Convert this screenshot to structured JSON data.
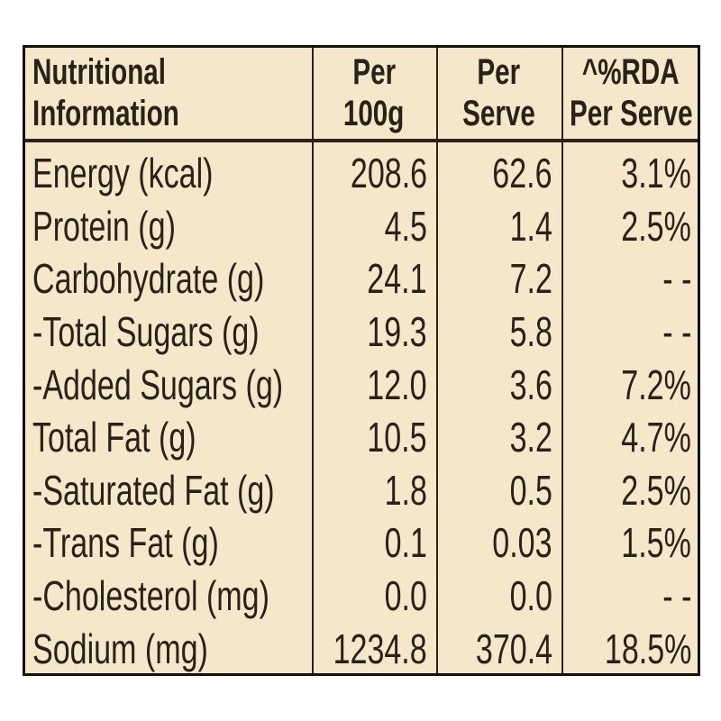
{
  "table": {
    "header": [
      [
        "Nutritional",
        "Information"
      ],
      [
        "Per",
        "100g"
      ],
      [
        "Per",
        "Serve"
      ],
      [
        "^%RDA",
        "Per Serve"
      ]
    ],
    "rows": [
      [
        "Energy (kcal)",
        "208.6",
        "62.6",
        "3.1%"
      ],
      [
        "Protein (g)",
        "4.5",
        "1.4",
        "2.5%"
      ],
      [
        "Carbohydrate (g)",
        "24.1",
        "7.2",
        "- -"
      ],
      [
        "-Total Sugars (g)",
        "19.3",
        "5.8",
        "- -"
      ],
      [
        "-Added Sugars (g)",
        "12.0",
        "3.6",
        "7.2%"
      ],
      [
        "Total Fat (g)",
        "10.5",
        "3.2",
        "4.7%"
      ],
      [
        "-Saturated Fat (g)",
        "1.8",
        "0.5",
        "2.5%"
      ],
      [
        "-Trans Fat (g)",
        "0.1",
        "0.03",
        "1.5%"
      ],
      [
        "-Cholesterol (mg)",
        "0.0",
        "0.0",
        "- -"
      ],
      [
        "Sodium (mg)",
        "1234.8",
        "370.4",
        "18.5%"
      ]
    ]
  }
}
